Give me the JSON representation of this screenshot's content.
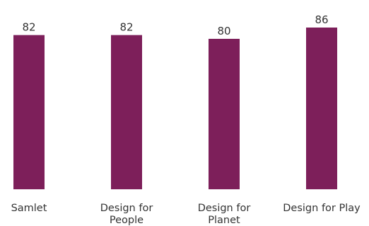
{
  "chart_data": {
    "type": "bar",
    "categories": [
      [
        "Samlet"
      ],
      [
        "Design for",
        "People"
      ],
      [
        "Design for",
        "Planet"
      ],
      [
        "Design for Play"
      ]
    ],
    "values": [
      82,
      82,
      80,
      86
    ],
    "value_labels": [
      "82",
      "82",
      "80",
      "86"
    ],
    "ylim": [
      0,
      86
    ],
    "grid": false,
    "legend": false,
    "colors": {
      "bar": "#7d1f5a",
      "text": "#333333"
    }
  }
}
